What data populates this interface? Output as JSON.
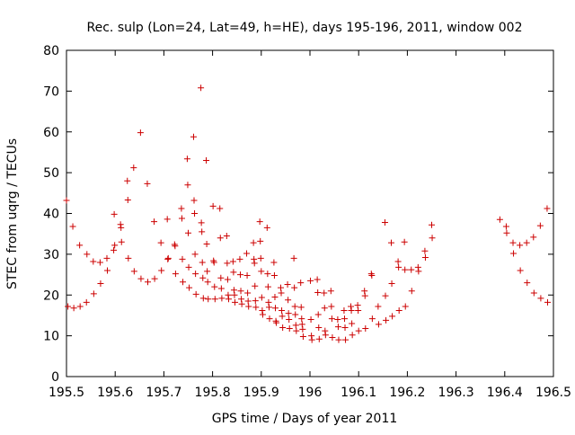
{
  "chart_data": {
    "type": "scatter",
    "title": "Rec. sulp (Lon=24, Lat=49, h=HE), days 195-196, 2011, window 002",
    "xlabel": "GPS time / Days of year 2011",
    "ylabel": "STEC from uqrg / TECUs",
    "xlim": [
      195.5,
      196.5
    ],
    "ylim": [
      0,
      80
    ],
    "xticks": [
      "195.5",
      "195.6",
      "195.7",
      "195.8",
      "195.9",
      "196",
      "196.1",
      "196.2",
      "196.3",
      "196.4",
      "196.5"
    ],
    "yticks": [
      "0",
      "10",
      "20",
      "30",
      "40",
      "50",
      "60",
      "70",
      "80"
    ],
    "grid": false,
    "legend": "none",
    "marker": "plus",
    "color": "#cc0000",
    "series": [
      {
        "name": "STEC",
        "points": [
          [
            195.5,
            43.2
          ],
          [
            195.503,
            17.2
          ],
          [
            195.513,
            36.8
          ],
          [
            195.515,
            16.8
          ],
          [
            195.527,
            32.2
          ],
          [
            195.528,
            17.2
          ],
          [
            195.541,
            18.2
          ],
          [
            195.542,
            30.0
          ],
          [
            195.555,
            28.2
          ],
          [
            195.556,
            20.3
          ],
          [
            195.569,
            28.0
          ],
          [
            195.57,
            22.8
          ],
          [
            195.583,
            29.0
          ],
          [
            195.584,
            26.0
          ],
          [
            195.597,
            31.0
          ],
          [
            195.598,
            39.8
          ],
          [
            195.599,
            32.2
          ],
          [
            195.611,
            37.3
          ],
          [
            195.612,
            36.5
          ],
          [
            195.613,
            33.0
          ],
          [
            195.625,
            48.0
          ],
          [
            195.626,
            43.3
          ],
          [
            195.627,
            29.0
          ],
          [
            195.638,
            51.2
          ],
          [
            195.639,
            25.8
          ],
          [
            195.652,
            59.8
          ],
          [
            195.653,
            24.0
          ],
          [
            195.666,
            47.3
          ],
          [
            195.667,
            23.2
          ],
          [
            195.68,
            38.0
          ],
          [
            195.681,
            24.0
          ],
          [
            195.694,
            32.8
          ],
          [
            195.695,
            26.0
          ],
          [
            195.707,
            38.6
          ],
          [
            195.708,
            28.8
          ],
          [
            195.709,
            29.0
          ],
          [
            195.722,
            32.4
          ],
          [
            195.723,
            32.0
          ],
          [
            195.724,
            25.2
          ],
          [
            195.736,
            41.2
          ],
          [
            195.737,
            38.8
          ],
          [
            195.738,
            28.8
          ],
          [
            195.739,
            23.2
          ],
          [
            195.748,
            53.4
          ],
          [
            195.749,
            47.0
          ],
          [
            195.75,
            35.2
          ],
          [
            195.751,
            26.8
          ],
          [
            195.752,
            21.8
          ],
          [
            195.761,
            58.8
          ],
          [
            195.762,
            43.2
          ],
          [
            195.763,
            40.0
          ],
          [
            195.764,
            30.0
          ],
          [
            195.765,
            25.2
          ],
          [
            195.766,
            20.2
          ],
          [
            195.776,
            70.8
          ],
          [
            195.777,
            37.7
          ],
          [
            195.778,
            35.5
          ],
          [
            195.779,
            28.0
          ],
          [
            195.78,
            24.2
          ],
          [
            195.781,
            19.2
          ],
          [
            195.787,
            53.0
          ],
          [
            195.788,
            32.5
          ],
          [
            195.789,
            25.8
          ],
          [
            195.79,
            23.2
          ],
          [
            195.791,
            19.0
          ],
          [
            195.801,
            41.8
          ],
          [
            195.802,
            28.4
          ],
          [
            195.803,
            28.0
          ],
          [
            195.804,
            22.0
          ],
          [
            195.805,
            19.0
          ],
          [
            195.815,
            41.2
          ],
          [
            195.816,
            34.0
          ],
          [
            195.817,
            24.2
          ],
          [
            195.818,
            21.6
          ],
          [
            195.819,
            19.2
          ],
          [
            195.829,
            34.5
          ],
          [
            195.83,
            27.8
          ],
          [
            195.831,
            23.8
          ],
          [
            195.832,
            20.0
          ],
          [
            195.833,
            19.0
          ],
          [
            195.842,
            28.2
          ],
          [
            195.843,
            25.6
          ],
          [
            195.844,
            21.2
          ],
          [
            195.845,
            20.0
          ],
          [
            195.846,
            18.2
          ],
          [
            195.856,
            28.8
          ],
          [
            195.857,
            25.0
          ],
          [
            195.858,
            21.0
          ],
          [
            195.859,
            19.0
          ],
          [
            195.86,
            17.8
          ],
          [
            195.87,
            30.2
          ],
          [
            195.871,
            24.8
          ],
          [
            195.872,
            20.5
          ],
          [
            195.873,
            18.5
          ],
          [
            195.874,
            17.2
          ],
          [
            195.884,
            32.8
          ],
          [
            195.885,
            28.8
          ],
          [
            195.886,
            27.8
          ],
          [
            195.887,
            22.2
          ],
          [
            195.888,
            18.6
          ],
          [
            195.889,
            17.0
          ],
          [
            195.897,
            38.0
          ],
          [
            195.898,
            33.2
          ],
          [
            195.899,
            29.0
          ],
          [
            195.9,
            25.8
          ],
          [
            195.901,
            19.4
          ],
          [
            195.902,
            16.2
          ],
          [
            195.903,
            15.2
          ],
          [
            195.912,
            36.5
          ],
          [
            195.913,
            25.2
          ],
          [
            195.914,
            22.0
          ],
          [
            195.915,
            18.2
          ],
          [
            195.916,
            17.0
          ],
          [
            195.917,
            14.2
          ],
          [
            195.926,
            28.0
          ],
          [
            195.927,
            24.8
          ],
          [
            195.928,
            19.5
          ],
          [
            195.929,
            16.8
          ],
          [
            195.93,
            13.6
          ],
          [
            195.931,
            13.2
          ],
          [
            195.94,
            21.8
          ],
          [
            195.941,
            20.5
          ],
          [
            195.942,
            16.2
          ],
          [
            195.943,
            14.8
          ],
          [
            195.944,
            12.0
          ],
          [
            195.954,
            22.6
          ],
          [
            195.955,
            18.8
          ],
          [
            195.956,
            15.5
          ],
          [
            195.957,
            14.0
          ],
          [
            195.958,
            11.8
          ],
          [
            195.967,
            29.0
          ],
          [
            195.968,
            21.8
          ],
          [
            195.969,
            17.2
          ],
          [
            195.97,
            15.2
          ],
          [
            195.971,
            12.6
          ],
          [
            195.972,
            11.2
          ],
          [
            195.981,
            23.0
          ],
          [
            195.982,
            17.0
          ],
          [
            195.983,
            14.2
          ],
          [
            195.984,
            12.8
          ],
          [
            195.985,
            11.6
          ],
          [
            195.986,
            9.8
          ],
          [
            196.001,
            23.5
          ],
          [
            196.002,
            14.0
          ],
          [
            196.003,
            10.0
          ],
          [
            196.004,
            9.0
          ],
          [
            196.015,
            23.8
          ],
          [
            196.016,
            20.6
          ],
          [
            196.017,
            15.2
          ],
          [
            196.018,
            12.0
          ],
          [
            196.019,
            9.2
          ],
          [
            196.029,
            20.5
          ],
          [
            196.03,
            16.8
          ],
          [
            196.031,
            11.2
          ],
          [
            196.032,
            10.2
          ],
          [
            196.043,
            21.0
          ],
          [
            196.044,
            17.2
          ],
          [
            196.045,
            14.2
          ],
          [
            196.046,
            9.6
          ],
          [
            196.057,
            14.0
          ],
          [
            196.058,
            12.2
          ],
          [
            196.059,
            9.0
          ],
          [
            196.07,
            16.2
          ],
          [
            196.071,
            14.2
          ],
          [
            196.072,
            12.0
          ],
          [
            196.073,
            9.0
          ],
          [
            196.084,
            17.2
          ],
          [
            196.085,
            16.2
          ],
          [
            196.086,
            13.0
          ],
          [
            196.087,
            10.2
          ],
          [
            196.098,
            17.5
          ],
          [
            196.099,
            16.2
          ],
          [
            196.1,
            11.2
          ],
          [
            196.112,
            21.0
          ],
          [
            196.113,
            19.8
          ],
          [
            196.114,
            11.8
          ],
          [
            196.126,
            25.2
          ],
          [
            196.127,
            24.8
          ],
          [
            196.128,
            14.2
          ],
          [
            196.14,
            17.2
          ],
          [
            196.141,
            12.8
          ],
          [
            196.154,
            37.8
          ],
          [
            196.155,
            19.8
          ],
          [
            196.156,
            13.8
          ],
          [
            196.167,
            32.8
          ],
          [
            196.168,
            22.8
          ],
          [
            196.169,
            14.8
          ],
          [
            196.181,
            28.2
          ],
          [
            196.182,
            26.8
          ],
          [
            196.183,
            16.2
          ],
          [
            196.194,
            33.0
          ],
          [
            196.195,
            26.2
          ],
          [
            196.196,
            17.2
          ],
          [
            196.208,
            26.2
          ],
          [
            196.209,
            21.0
          ],
          [
            196.222,
            26.8
          ],
          [
            196.223,
            25.8
          ],
          [
            196.236,
            30.8
          ],
          [
            196.237,
            29.2
          ],
          [
            196.25,
            37.2
          ],
          [
            196.251,
            34.0
          ],
          [
            196.39,
            38.5
          ],
          [
            196.403,
            36.8
          ],
          [
            196.404,
            35.2
          ],
          [
            196.417,
            32.8
          ],
          [
            196.418,
            30.2
          ],
          [
            196.431,
            32.2
          ],
          [
            196.432,
            26.0
          ],
          [
            196.445,
            32.8
          ],
          [
            196.446,
            23.0
          ],
          [
            196.459,
            34.2
          ],
          [
            196.46,
            20.5
          ],
          [
            196.473,
            37.0
          ],
          [
            196.474,
            19.2
          ],
          [
            196.487,
            41.2
          ],
          [
            196.488,
            18.2
          ]
        ]
      }
    ]
  }
}
